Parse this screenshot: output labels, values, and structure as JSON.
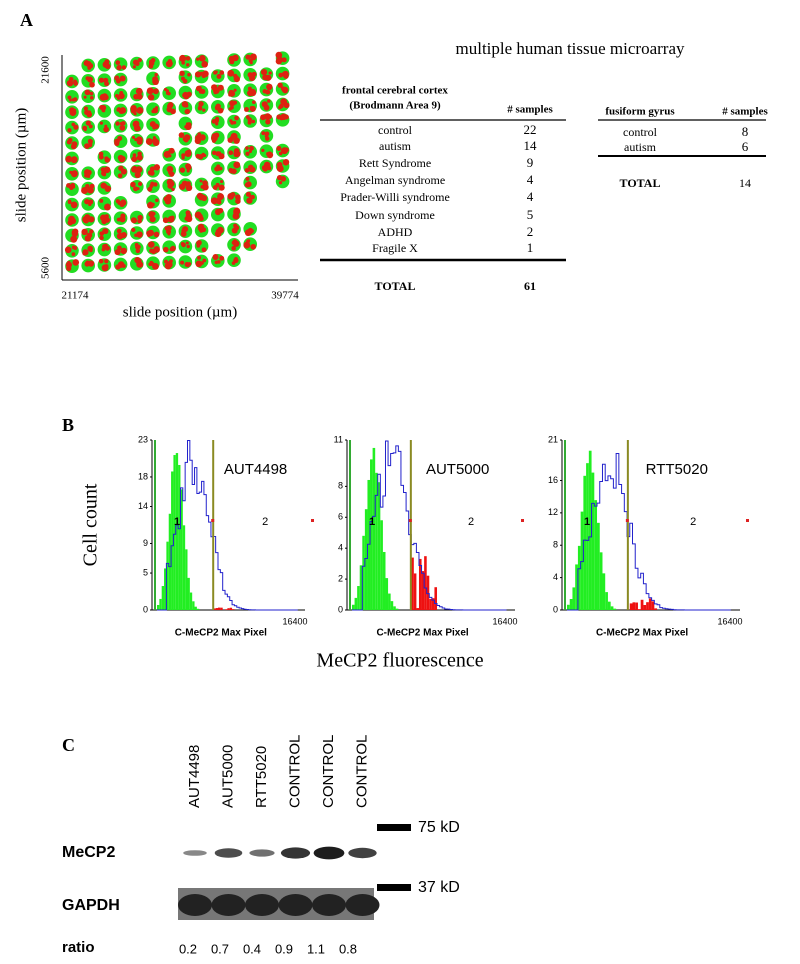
{
  "panel_a": {
    "label": "A",
    "y_axis_label": "slide position (µm)",
    "x_axis_label": "slide position (µm)",
    "y_ticks": [
      "21600",
      "5600"
    ],
    "x_ticks": [
      "21174",
      "39774"
    ],
    "title": "multiple human tissue microarray",
    "table_1": {
      "header": [
        "frontal cerebral cortex",
        "(Brodmann Area 9)"
      ],
      "count_header": "# samples",
      "rows": [
        [
          "control",
          "22"
        ],
        [
          "autism",
          "14"
        ],
        [
          "Rett Syndrome",
          "9"
        ],
        [
          "Angelman syndrome",
          "4"
        ],
        [
          "Prader-Willi syndrome",
          "4"
        ],
        [
          "Down syndrome",
          "5"
        ],
        [
          "ADHD",
          "2"
        ],
        [
          "Fragile X",
          "1"
        ]
      ],
      "total": [
        "TOTAL",
        "61"
      ]
    },
    "table_2": {
      "header": "fusiform gyrus",
      "count_header": "# samples",
      "rows": [
        [
          "control",
          "8"
        ],
        [
          "autism",
          "6"
        ]
      ],
      "total": [
        "TOTAL",
        "14"
      ]
    }
  },
  "panel_b": {
    "label": "B",
    "y_axis_label": "Cell count",
    "x_axis_label": "MeCP2 fluorescence",
    "histograms": [
      {
        "name": "AUT4498",
        "yticks": [
          0,
          5,
          9,
          14,
          18,
          23
        ],
        "x_label": "C-MeCP2 Max Pixel",
        "x_max": "16400",
        "gates": [
          "1",
          "2"
        ]
      },
      {
        "name": "AUT5000",
        "yticks": [
          0,
          2,
          4,
          6,
          8,
          11
        ],
        "x_label": "C-MeCP2 Max Pixel",
        "x_max": "16400",
        "gates": [
          "1",
          "2"
        ]
      },
      {
        "name": "RTT5020",
        "yticks": [
          0,
          4,
          8,
          12,
          16,
          21
        ],
        "x_label": "C-MeCP2 Max Pixel",
        "x_max": "16400",
        "gates": [
          "1",
          "2"
        ]
      }
    ]
  },
  "panel_c": {
    "label": "C",
    "lanes": [
      "AUT4498",
      "AUT5000",
      "RTT5020",
      "CONTROL",
      "CONTROL",
      "CONTROL"
    ],
    "rows": [
      "MeCP2",
      "GAPDH"
    ],
    "markers": [
      "75 kD",
      "37 kD"
    ],
    "ratio_label": "ratio",
    "ratios": [
      0.2,
      0.7,
      0.4,
      0.9,
      1.1,
      0.8
    ]
  }
}
